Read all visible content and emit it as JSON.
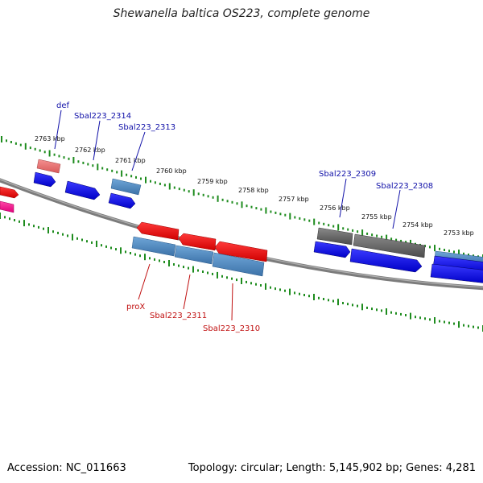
{
  "title": "Shewanella baltica OS223, complete genome",
  "footer": {
    "accession": "Accession: NC_011663",
    "summary": "Topology: circular; Length: 5,145,902 bp; Genes: 4,281"
  },
  "ruler_labels": [
    "2763 kbp",
    "2762 kbp",
    "2761 kbp",
    "2760 kbp",
    "2759 kbp",
    "2758 kbp",
    "2757 kbp",
    "2756 kbp",
    "2755 kbp",
    "2754 kbp",
    "2753 kbp"
  ],
  "gene_labels_top": [
    "def",
    "Sbal223_2314",
    "Sbal223_2313",
    "Sbal223_2309",
    "Sbal223_2308"
  ],
  "gene_labels_bottom": [
    "proX",
    "Sbal223_2311",
    "Sbal223_2310"
  ],
  "colors": {
    "backbone": "#8a8a8a",
    "ruler_ticks": "#1e8c1e",
    "cds": "#1414e6",
    "forward_gene": "#ee1111",
    "steel_gene": "#4a86c0",
    "grey_gene": "#666666",
    "pink_gene": "#e87070",
    "magenta_gene": "#ff1493",
    "label_top": "#1010a8",
    "label_bottom": "#c01010"
  }
}
